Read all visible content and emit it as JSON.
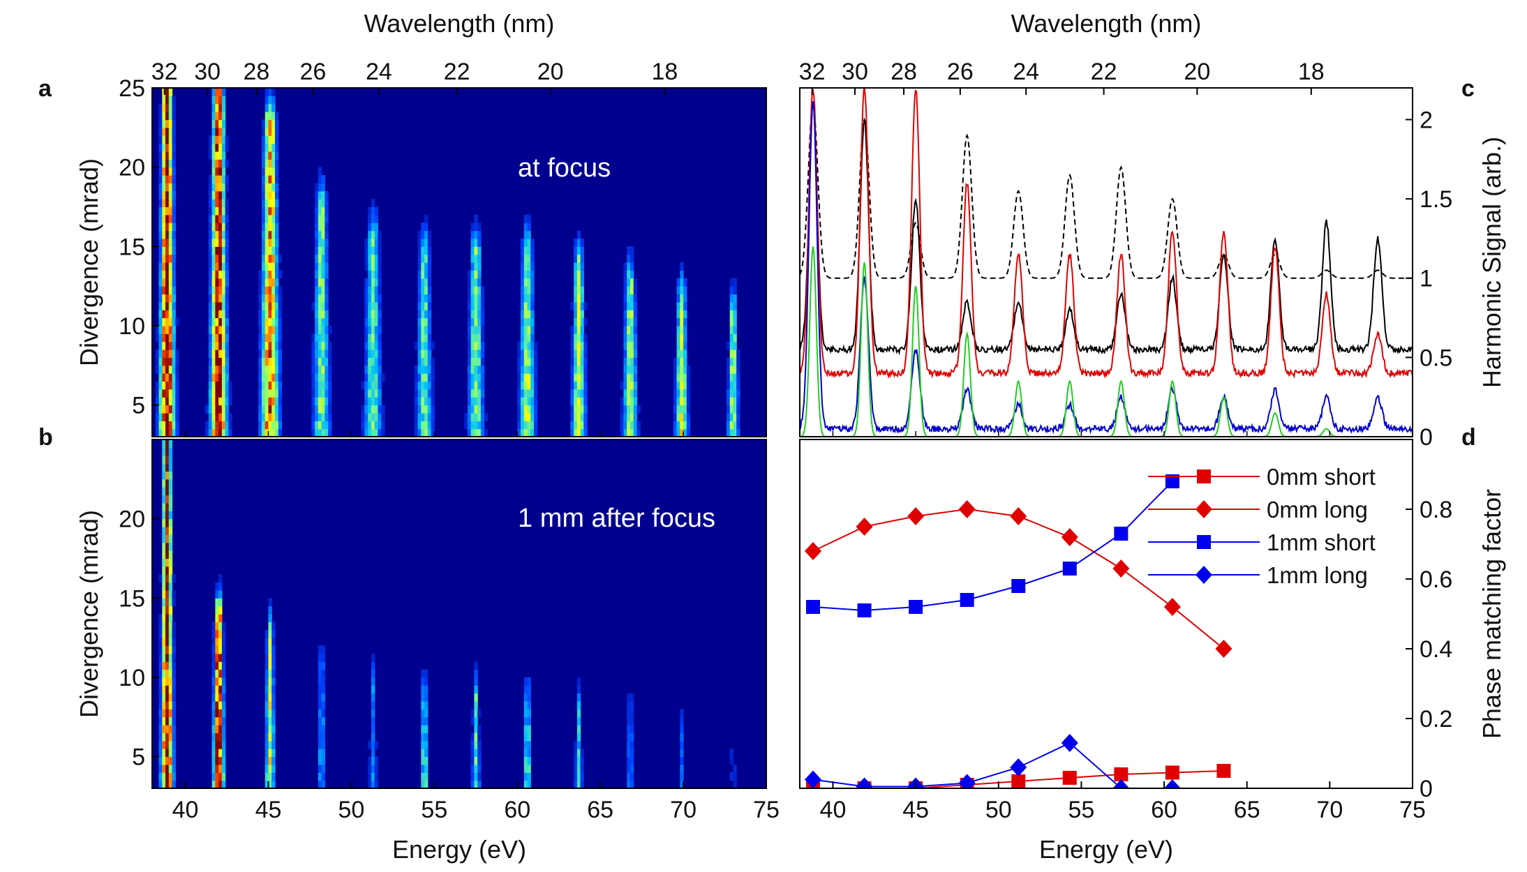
{
  "chart_data": [
    {
      "panel": "a",
      "type": "heatmap",
      "annotation": "at focus",
      "xlabel": "Energy (eV)",
      "ylabel": "Divergence (mrad)",
      "x2label": "Wavelength (nm)",
      "xlim": [
        38,
        75
      ],
      "ylim": [
        3,
        25
      ],
      "yticks": [
        5,
        10,
        15,
        20,
        25
      ],
      "wavelength_ticks": [
        "32",
        "30",
        "28",
        "26",
        "24",
        "22",
        "20",
        "18"
      ],
      "colormap": [
        "#00008f",
        "#0040ff",
        "#00c0ff",
        "#80ff80",
        "#ffff00",
        "#ff4000",
        "#800000"
      ],
      "harmonic_energies_eV": [
        38.8,
        41.9,
        45.0,
        48.1,
        51.2,
        54.3,
        57.4,
        60.5,
        63.6,
        66.7,
        69.8,
        72.9
      ],
      "harmonic_peak_intensity": [
        1.0,
        0.95,
        0.8,
        0.5,
        0.45,
        0.45,
        0.5,
        0.55,
        0.55,
        0.55,
        0.6,
        0.55
      ],
      "harmonic_extent_mrad": [
        25,
        25,
        22,
        17,
        15,
        14,
        14,
        14,
        13,
        12,
        11,
        10
      ]
    },
    {
      "panel": "b",
      "type": "heatmap",
      "annotation": "1 mm after focus",
      "xlabel": "Energy (eV)",
      "ylabel": "Divergence (mrad)",
      "xlim": [
        38,
        75
      ],
      "ylim": [
        3,
        25
      ],
      "yticks": [
        5,
        10,
        15,
        20
      ],
      "xticks": [
        40,
        45,
        50,
        55,
        60,
        65,
        70,
        75
      ],
      "harmonic_energies_eV": [
        38.8,
        41.9,
        45.0,
        48.1,
        51.2,
        54.3,
        57.4,
        60.5,
        63.6,
        66.7,
        69.8,
        72.9
      ],
      "harmonic_peak_intensity": [
        1.0,
        0.95,
        0.6,
        0.3,
        0.25,
        0.45,
        0.45,
        0.45,
        0.35,
        0.25,
        0.2,
        0.15
      ],
      "harmonic_extent_mrad": [
        24,
        13,
        12,
        10,
        9,
        8,
        8,
        8,
        7,
        7,
        6,
        6
      ]
    },
    {
      "panel": "c",
      "type": "line",
      "xlabel": "",
      "ylabel": "Harmonic Signal (arb.)",
      "x2label": "Wavelength (nm)",
      "xlim": [
        38,
        75
      ],
      "ylim": [
        0,
        2.2
      ],
      "yticks": [
        "0",
        "0.5",
        "1",
        "1.5",
        "2"
      ],
      "wavelength_ticks": [
        "32",
        "30",
        "28",
        "26",
        "24",
        "22",
        "20",
        "18"
      ],
      "peaks_eV": [
        38.8,
        41.9,
        45.0,
        48.1,
        51.2,
        54.3,
        57.4,
        60.5,
        63.6,
        66.7,
        69.8,
        72.9
      ],
      "series": [
        {
          "style": "black dashed",
          "color": "#000000",
          "baseline": 1.0,
          "peak_values": [
            2.1,
            2.0,
            1.35,
            1.9,
            1.55,
            1.65,
            1.7,
            1.5,
            1.15,
            1.15,
            1.05,
            1.05
          ]
        },
        {
          "style": "black solid",
          "color": "#000000",
          "baseline": 0.55,
          "peak_values": [
            2.1,
            2.0,
            1.5,
            0.85,
            0.85,
            0.8,
            0.9,
            1.0,
            1.15,
            1.25,
            1.35,
            1.25
          ]
        },
        {
          "style": "red solid",
          "color": "#e00000",
          "baseline": 0.4,
          "peak_values": [
            2.2,
            2.2,
            2.2,
            1.6,
            1.15,
            1.15,
            1.15,
            1.3,
            1.3,
            1.2,
            0.9,
            0.65
          ]
        },
        {
          "style": "blue solid",
          "color": "#0000cc",
          "baseline": 0.05,
          "peak_values": [
            2.1,
            1.0,
            0.55,
            0.3,
            0.2,
            0.2,
            0.25,
            0.3,
            0.25,
            0.3,
            0.25,
            0.25
          ]
        },
        {
          "style": "green solid",
          "color": "#22cc22",
          "baseline": 0.0,
          "peak_values": [
            1.2,
            1.1,
            0.95,
            0.65,
            0.35,
            0.35,
            0.35,
            0.35,
            0.25,
            0.15,
            0.05,
            0.0
          ]
        }
      ]
    },
    {
      "panel": "d",
      "type": "line",
      "xlabel": "Energy (eV)",
      "ylabel": "Phase matching factor",
      "xlim": [
        38,
        75
      ],
      "ylim": [
        0,
        1
      ],
      "yticks": [
        "0",
        "0.2",
        "0.4",
        "0.6",
        "0.8"
      ],
      "xticks": [
        40,
        45,
        50,
        55,
        60,
        65,
        70,
        75
      ],
      "legend": "top-right",
      "series": [
        {
          "name": "0mm short",
          "color": "#e00000",
          "marker": "square",
          "x": [
            38.8,
            41.9,
            45.0,
            48.1,
            51.2,
            54.3,
            57.4,
            60.5,
            63.6
          ],
          "y": [
            0.0,
            0.0,
            0.0,
            0.01,
            0.02,
            0.03,
            0.04,
            0.045,
            0.05
          ]
        },
        {
          "name": "0mm long",
          "color": "#e00000",
          "marker": "diamond",
          "x": [
            38.8,
            41.9,
            45.0,
            48.1,
            51.2,
            54.3,
            57.4,
            60.5,
            63.6
          ],
          "y": [
            0.68,
            0.75,
            0.78,
            0.8,
            0.78,
            0.72,
            0.63,
            0.52,
            0.4
          ]
        },
        {
          "name": "1mm short",
          "color": "#0000ee",
          "marker": "square",
          "x": [
            38.8,
            41.9,
            45.0,
            48.1,
            51.2,
            54.3,
            57.4,
            60.5
          ],
          "y": [
            0.52,
            0.51,
            0.52,
            0.54,
            0.58,
            0.63,
            0.73,
            0.88
          ]
        },
        {
          "name": "1mm long",
          "color": "#0000ee",
          "marker": "diamond",
          "x": [
            38.8,
            41.9,
            45.0,
            48.1,
            51.2,
            54.3,
            57.4,
            60.5
          ],
          "y": [
            0.025,
            0.005,
            0.005,
            0.015,
            0.06,
            0.13,
            0.0,
            0.0
          ]
        }
      ]
    }
  ]
}
